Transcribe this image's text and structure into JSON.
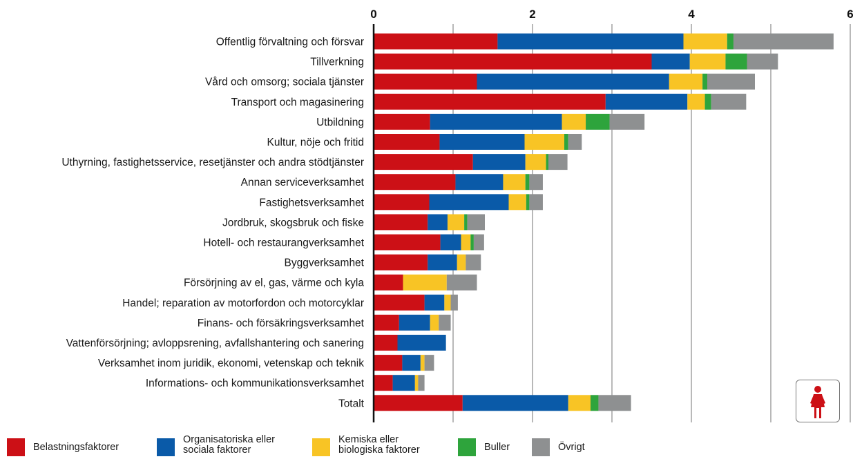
{
  "chart_data": {
    "type": "bar",
    "orientation": "horizontal",
    "stacked": true,
    "categories": [
      "Offentlig förvaltning och försvar",
      "Tillverkning",
      "Vård och omsorg; sociala tjänster",
      "Transport och magasinering",
      "Utbildning",
      "Kultur, nöje och fritid",
      "Uthyrning, fastighetsservice, resetjänster och andra stödtjänster",
      "Annan serviceverksamhet",
      "Fastighetsverksamhet",
      "Jordbruk, skogsbruk och fiske",
      "Hotell- och restaurangverksamhet",
      "Byggverksamhet",
      "Försörjning av el, gas, värme och kyla",
      "Handel; reparation av motorfordon och motorcyklar",
      "Finans- och försäkringsverksamhet",
      "Vattenförsörjning; avloppsrening, avfallshantering och sanering",
      "Verksamhet inom juridik, ekonomi, vetenskap och teknik",
      "Informations- och kommunikationsverksamhet",
      "Totalt"
    ],
    "series": [
      {
        "name": "Belastningsfaktorer",
        "color": "#cc1016",
        "values": [
          1.56,
          3.5,
          1.3,
          2.92,
          0.71,
          0.83,
          1.25,
          1.03,
          0.7,
          0.68,
          0.84,
          0.68,
          0.37,
          0.64,
          0.32,
          0.3,
          0.36,
          0.24,
          1.12
        ]
      },
      {
        "name": "Organisatoriska eller sociala faktorer",
        "color": "#0a5aa8",
        "values": [
          2.34,
          0.48,
          2.42,
          1.03,
          1.66,
          1.07,
          0.66,
          0.6,
          1.0,
          0.25,
          0.26,
          0.37,
          0.0,
          0.25,
          0.39,
          0.61,
          0.23,
          0.28,
          1.33
        ]
      },
      {
        "name": "Kemiska eller biologiska faktorer",
        "color": "#f8c425",
        "values": [
          0.55,
          0.45,
          0.42,
          0.22,
          0.3,
          0.5,
          0.26,
          0.28,
          0.22,
          0.21,
          0.12,
          0.11,
          0.55,
          0.08,
          0.11,
          0.0,
          0.05,
          0.04,
          0.28
        ]
      },
      {
        "name": "Buller",
        "color": "#2ea43c",
        "values": [
          0.08,
          0.27,
          0.06,
          0.08,
          0.3,
          0.05,
          0.03,
          0.05,
          0.04,
          0.04,
          0.04,
          0.0,
          0.0,
          0.0,
          0.0,
          0.0,
          0.0,
          0.0,
          0.1
        ]
      },
      {
        "name": "Övrigt",
        "color": "#8e9091",
        "values": [
          1.26,
          0.39,
          0.6,
          0.44,
          0.44,
          0.17,
          0.24,
          0.17,
          0.17,
          0.22,
          0.13,
          0.19,
          0.38,
          0.09,
          0.15,
          0.0,
          0.12,
          0.08,
          0.41
        ]
      }
    ],
    "x_ticks": [
      0,
      2,
      4,
      6
    ],
    "xlim": [
      0,
      6
    ],
    "grid": true
  },
  "legend": {
    "items": [
      {
        "line1": "Belastningsfaktorer",
        "line2": "",
        "color": "#cc1016"
      },
      {
        "line1": "Organisatoriska eller",
        "line2": "sociala faktorer",
        "color": "#0a5aa8"
      },
      {
        "line1": "Kemiska eller",
        "line2": "biologiska faktorer",
        "color": "#f8c425"
      },
      {
        "line1": "Buller",
        "line2": "",
        "color": "#2ea43c"
      },
      {
        "line1": "Övrigt",
        "line2": "",
        "color": "#8e9091"
      }
    ]
  },
  "gender_icon": {
    "icon": "woman-icon",
    "color": "#cc1016"
  }
}
